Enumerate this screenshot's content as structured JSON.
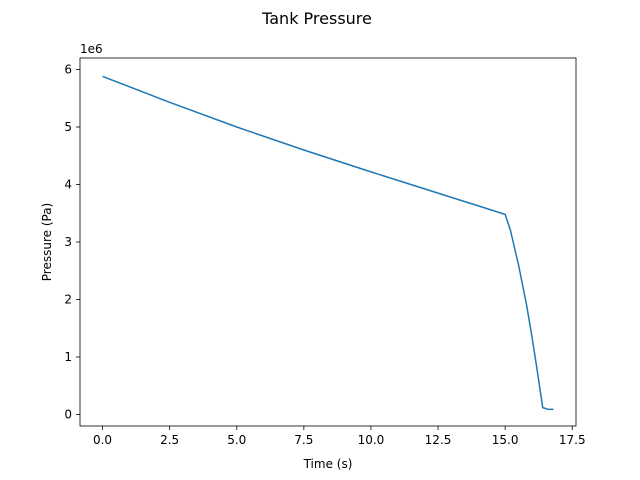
{
  "chart_data": {
    "type": "line",
    "title": "Tank Pressure",
    "xlabel": "Time (s)",
    "ylabel": "Pressure (Pa)",
    "y_offset_label": "1e6",
    "xlim": [
      -0.84,
      17.64
    ],
    "ylim": [
      -0.2,
      6.2
    ],
    "x_ticks": [
      0.0,
      2.5,
      5.0,
      7.5,
      10.0,
      12.5,
      15.0,
      17.5
    ],
    "x_tick_labels": [
      "0.0",
      "2.5",
      "5.0",
      "7.5",
      "10.0",
      "12.5",
      "15.0",
      "17.5"
    ],
    "y_ticks": [
      0,
      1,
      2,
      3,
      4,
      5,
      6
    ],
    "y_tick_labels": [
      "0",
      "1",
      "2",
      "3",
      "4",
      "5",
      "6"
    ],
    "grid": false,
    "color": "#1f77b4",
    "series": [
      {
        "x": [
          0.0,
          2.5,
          5.0,
          7.5,
          10.0,
          12.5,
          15.0,
          15.2,
          15.5,
          15.8,
          16.0,
          16.2,
          16.4,
          16.6,
          16.8
        ],
        "y": [
          5.88,
          5.43,
          5.0,
          4.6,
          4.22,
          3.85,
          3.48,
          3.2,
          2.6,
          1.9,
          1.35,
          0.75,
          0.12,
          0.09,
          0.09
        ]
      }
    ]
  }
}
